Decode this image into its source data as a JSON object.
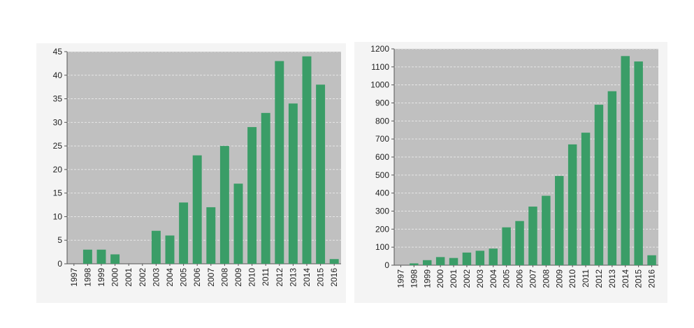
{
  "colors": {
    "bar": "#3a9d67",
    "plot_bg": "#c0c0c0",
    "grid": "#e6e6e6",
    "axis": "#555555"
  },
  "chart_data": [
    {
      "type": "bar",
      "title": "",
      "xlabel": "",
      "ylabel": "",
      "categories": [
        "1997",
        "1998",
        "1999",
        "2000",
        "2001",
        "2002",
        "2003",
        "2004",
        "2005",
        "2006",
        "2007",
        "2008",
        "2009",
        "2010",
        "2011",
        "2012",
        "2013",
        "2014",
        "2015",
        "2016"
      ],
      "series": [
        {
          "values": [
            0,
            3,
            3,
            2,
            0,
            0,
            7,
            6,
            13,
            23,
            12,
            25,
            17,
            29,
            32,
            43,
            34,
            44,
            38,
            1
          ]
        }
      ],
      "ylim": [
        0,
        45
      ],
      "yticks": [
        0,
        5,
        10,
        15,
        20,
        25,
        30,
        35,
        40,
        45
      ],
      "grid": true,
      "legend": "none"
    },
    {
      "type": "bar",
      "title": "",
      "xlabel": "",
      "ylabel": "",
      "categories": [
        "1997",
        "1998",
        "1999",
        "2000",
        "2001",
        "2002",
        "2003",
        "2004",
        "2005",
        "2006",
        "2007",
        "2008",
        "2009",
        "2010",
        "2011",
        "2012",
        "2013",
        "2014",
        "2015",
        "2016"
      ],
      "series": [
        {
          "values": [
            0,
            10,
            28,
            45,
            40,
            70,
            80,
            92,
            210,
            245,
            325,
            385,
            495,
            670,
            735,
            890,
            965,
            1160,
            1130,
            55
          ]
        }
      ],
      "ylim": [
        0,
        1200
      ],
      "yticks": [
        0,
        100,
        200,
        300,
        400,
        500,
        600,
        700,
        800,
        900,
        1000,
        1100,
        1200
      ],
      "grid": true,
      "legend": "none"
    }
  ]
}
